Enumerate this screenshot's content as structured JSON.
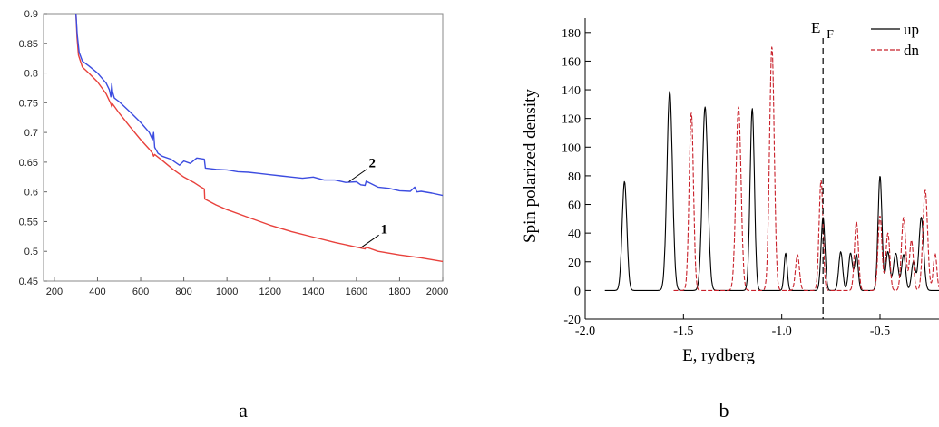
{
  "panels": {
    "a_letter": "a",
    "b_letter": "b"
  },
  "chart_data": [
    {
      "type": "line",
      "xlim": [
        150,
        2000
      ],
      "ylim": [
        0.45,
        0.9
      ],
      "x_ticks": [
        200,
        400,
        600,
        800,
        1000,
        1200,
        1400,
        1600,
        1800,
        2000
      ],
      "y_ticks": [
        0.45,
        0.5,
        0.55,
        0.6,
        0.65,
        0.7,
        0.75,
        0.8,
        0.85,
        0.9
      ],
      "grid": false,
      "series": [
        {
          "color": "#e8413c",
          "points": [
            [
              300,
              0.9
            ],
            [
              305,
              0.86
            ],
            [
              312,
              0.83
            ],
            [
              330,
              0.81
            ],
            [
              360,
              0.8
            ],
            [
              400,
              0.785
            ],
            [
              440,
              0.765
            ],
            [
              462,
              0.748
            ],
            [
              466,
              0.743
            ],
            [
              470,
              0.748
            ],
            [
              500,
              0.733
            ],
            [
              550,
              0.71
            ],
            [
              600,
              0.688
            ],
            [
              640,
              0.672
            ],
            [
              655,
              0.665
            ],
            [
              660,
              0.66
            ],
            [
              665,
              0.663
            ],
            [
              700,
              0.653
            ],
            [
              750,
              0.638
            ],
            [
              800,
              0.625
            ],
            [
              850,
              0.615
            ],
            [
              880,
              0.608
            ],
            [
              895,
              0.605
            ],
            [
              897,
              0.588
            ],
            [
              950,
              0.578
            ],
            [
              1000,
              0.57
            ],
            [
              1100,
              0.557
            ],
            [
              1200,
              0.544
            ],
            [
              1300,
              0.533
            ],
            [
              1400,
              0.524
            ],
            [
              1500,
              0.515
            ],
            [
              1600,
              0.507
            ],
            [
              1640,
              0.504
            ],
            [
              1645,
              0.507
            ],
            [
              1700,
              0.5
            ],
            [
              1800,
              0.494
            ],
            [
              1900,
              0.489
            ],
            [
              2000,
              0.483
            ]
          ]
        },
        {
          "color": "#3c4ce0",
          "points": [
            [
              300,
              0.9
            ],
            [
              306,
              0.865
            ],
            [
              315,
              0.835
            ],
            [
              330,
              0.82
            ],
            [
              360,
              0.812
            ],
            [
              400,
              0.8
            ],
            [
              440,
              0.783
            ],
            [
              455,
              0.772
            ],
            [
              462,
              0.76
            ],
            [
              466,
              0.782
            ],
            [
              470,
              0.768
            ],
            [
              478,
              0.758
            ],
            [
              500,
              0.752
            ],
            [
              550,
              0.735
            ],
            [
              600,
              0.717
            ],
            [
              640,
              0.7
            ],
            [
              655,
              0.688
            ],
            [
              660,
              0.7
            ],
            [
              665,
              0.675
            ],
            [
              680,
              0.665
            ],
            [
              700,
              0.66
            ],
            [
              740,
              0.655
            ],
            [
              760,
              0.65
            ],
            [
              780,
              0.645
            ],
            [
              800,
              0.652
            ],
            [
              830,
              0.648
            ],
            [
              860,
              0.657
            ],
            [
              895,
              0.655
            ],
            [
              900,
              0.64
            ],
            [
              950,
              0.638
            ],
            [
              1000,
              0.637
            ],
            [
              1050,
              0.634
            ],
            [
              1100,
              0.633
            ],
            [
              1150,
              0.631
            ],
            [
              1200,
              0.629
            ],
            [
              1250,
              0.627
            ],
            [
              1300,
              0.625
            ],
            [
              1350,
              0.623
            ],
            [
              1400,
              0.625
            ],
            [
              1450,
              0.62
            ],
            [
              1500,
              0.62
            ],
            [
              1550,
              0.616
            ],
            [
              1600,
              0.617
            ],
            [
              1620,
              0.612
            ],
            [
              1640,
              0.611
            ],
            [
              1645,
              0.618
            ],
            [
              1700,
              0.608
            ],
            [
              1750,
              0.606
            ],
            [
              1800,
              0.602
            ],
            [
              1850,
              0.601
            ],
            [
              1870,
              0.608
            ],
            [
              1880,
              0.6
            ],
            [
              1900,
              0.601
            ],
            [
              1950,
              0.598
            ],
            [
              2000,
              0.594
            ]
          ]
        }
      ],
      "annotations": [
        {
          "text": "2",
          "x": 1565,
          "y": 0.617
        },
        {
          "text": "1",
          "x": 1620,
          "y": 0.506
        }
      ]
    },
    {
      "type": "line",
      "xlabel": "E, rydberg",
      "ylabel": "Spin polarized density",
      "xlim": [
        -2.0,
        -0.2
      ],
      "ylim": [
        -20,
        190
      ],
      "x_ticks": [
        -2.0,
        -1.5,
        -1.0,
        -0.5
      ],
      "x_tick_labels": [
        "-2.0",
        "-1.5",
        "-1.0",
        "-0.5"
      ],
      "y_ticks": [
        -20,
        0,
        20,
        40,
        60,
        80,
        100,
        120,
        140,
        160,
        180
      ],
      "grid": false,
      "fermi_level": {
        "label": "E",
        "subscript": "F",
        "x": -0.79
      },
      "legend_position": "top-right",
      "series": [
        {
          "name": "up",
          "color": "#000000",
          "dash": "solid",
          "x_range": [
            -1.9,
            -0.2
          ],
          "peaks": [
            [
              -1.8,
              76,
              0.012
            ],
            [
              -1.57,
              139,
              0.014
            ],
            [
              -1.39,
              128,
              0.014
            ],
            [
              -1.15,
              127,
              0.011
            ],
            [
              -0.98,
              26,
              0.008
            ],
            [
              -0.79,
              51,
              0.01
            ],
            [
              -0.7,
              27,
              0.01
            ],
            [
              -0.65,
              26,
              0.01
            ],
            [
              -0.62,
              25,
              0.009
            ],
            [
              -0.5,
              80,
              0.01
            ],
            [
              -0.46,
              27,
              0.01
            ],
            [
              -0.42,
              26,
              0.012
            ],
            [
              -0.38,
              25,
              0.01
            ],
            [
              -0.33,
              20,
              0.01
            ],
            [
              -0.29,
              51,
              0.012
            ]
          ]
        },
        {
          "name": "dn",
          "color": "#c8202a",
          "dash": "dashed",
          "x_range": [
            -1.55,
            -0.2
          ],
          "peaks": [
            [
              -1.46,
              124,
              0.011
            ],
            [
              -1.22,
              128,
              0.013
            ],
            [
              -1.05,
              170,
              0.012
            ],
            [
              -0.92,
              25,
              0.01
            ],
            [
              -0.8,
              77,
              0.01
            ],
            [
              -0.62,
              48,
              0.01
            ],
            [
              -0.5,
              52,
              0.01
            ],
            [
              -0.46,
              40,
              0.01
            ],
            [
              -0.38,
              51,
              0.011
            ],
            [
              -0.34,
              35,
              0.01
            ],
            [
              -0.27,
              70,
              0.012
            ],
            [
              -0.22,
              26,
              0.009
            ]
          ]
        }
      ]
    }
  ]
}
